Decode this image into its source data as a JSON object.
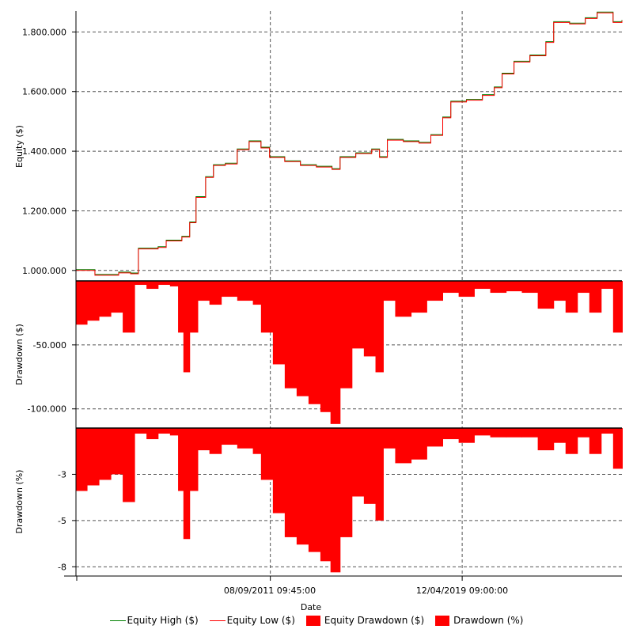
{
  "chart_data": {
    "type": "line",
    "x_range_years": [
      2004.0,
      2025.6
    ],
    "xlabel": "Date",
    "x_tick_labels": [
      "08/09/2011 09:45:00",
      "12/04/2019 09:00:00"
    ],
    "x_tick_years": [
      2011.69,
      2019.28
    ],
    "panels": [
      {
        "ylabel": "Equity ($)",
        "ylim": [
          965000,
          1870000
        ],
        "y_ticks": [
          1000000,
          1200000,
          1400000,
          1600000,
          1800000
        ],
        "y_tick_labels": [
          "1.000.000",
          "1.200.000",
          "1.400.000",
          "1.600.000",
          "1.800.000"
        ]
      },
      {
        "ylabel": "Drawdown ($)",
        "ylim": [
          -115000,
          0
        ],
        "y_ticks": [
          -50000,
          -100000
        ],
        "y_tick_labels": [
          "-50.000",
          "-100.000"
        ]
      },
      {
        "ylabel": "Drawdown (%)",
        "ylim": [
          -8.0,
          0
        ],
        "y_ticks": [
          -2.5,
          -5,
          -7.5
        ],
        "y_tick_labels": [
          "-3",
          "-5",
          "-8"
        ]
      }
    ],
    "equity": {
      "x": [
        2004.0,
        2004.75,
        2005.69,
        2006.16,
        2006.47,
        2007.25,
        2007.57,
        2008.19,
        2008.5,
        2008.75,
        2009.13,
        2009.44,
        2009.91,
        2010.38,
        2010.85,
        2011.32,
        2011.66,
        2012.26,
        2012.88,
        2013.51,
        2014.13,
        2014.45,
        2015.07,
        2015.7,
        2016.01,
        2016.32,
        2016.95,
        2017.57,
        2018.04,
        2018.51,
        2018.83,
        2019.45,
        2020.08,
        2020.55,
        2020.86,
        2021.33,
        2021.96,
        2022.59,
        2022.9,
        2023.53,
        2024.15,
        2024.62,
        2025.25,
        2025.6
      ],
      "values": [
        1000000,
        984000,
        992000,
        989000,
        1072000,
        1077000,
        1099000,
        1112000,
        1160000,
        1245000,
        1312000,
        1352000,
        1357000,
        1405000,
        1432000,
        1411000,
        1379000,
        1365000,
        1352000,
        1347000,
        1339000,
        1379000,
        1392000,
        1405000,
        1379000,
        1437000,
        1432000,
        1427000,
        1453000,
        1512000,
        1565000,
        1571000,
        1587000,
        1613000,
        1659000,
        1699000,
        1720000,
        1765000,
        1832000,
        1827000,
        1845000,
        1864000,
        1832000,
        1837000
      ]
    },
    "drawdown": {
      "x": [
        2004.0,
        2004.44,
        2004.91,
        2005.38,
        2005.85,
        2006.32,
        2006.79,
        2007.25,
        2007.72,
        2008.04,
        2008.25,
        2008.5,
        2008.82,
        2009.28,
        2009.75,
        2010.38,
        2011.0,
        2011.32,
        2011.79,
        2012.26,
        2012.73,
        2013.2,
        2013.67,
        2014.07,
        2014.45,
        2014.92,
        2015.39,
        2015.85,
        2016.16,
        2016.63,
        2017.26,
        2017.88,
        2018.51,
        2019.14,
        2019.76,
        2020.39,
        2021.02,
        2021.64,
        2022.27,
        2022.9,
        2023.37,
        2023.84,
        2024.31,
        2024.78,
        2025.25,
        2025.6
      ],
      "dollars": [
        -34200,
        -31100,
        -28000,
        -24800,
        -40400,
        -3100,
        -6200,
        -3100,
        -4300,
        -40400,
        -71400,
        -40400,
        -15500,
        -18600,
        -12400,
        -15500,
        -18600,
        -40400,
        -65200,
        -83900,
        -90100,
        -96300,
        -102500,
        -111800,
        -83900,
        -52800,
        -59000,
        -71400,
        -15500,
        -28000,
        -24800,
        -15500,
        -9300,
        -12400,
        -6200,
        -9300,
        -8100,
        -9300,
        -21700,
        -15500,
        -24800,
        -9300,
        -24800,
        -6200,
        -40400,
        -40400
      ],
      "percent": [
        -3.4,
        -3.1,
        -2.8,
        -2.5,
        -4.0,
        -0.3,
        -0.6,
        -0.3,
        -0.4,
        -3.4,
        -6.0,
        -3.4,
        -1.2,
        -1.4,
        -0.9,
        -1.1,
        -1.4,
        -2.8,
        -4.6,
        -5.9,
        -6.3,
        -6.7,
        -7.2,
        -7.8,
        -5.9,
        -3.7,
        -4.1,
        -5.0,
        -1.1,
        -1.9,
        -1.7,
        -1.0,
        -0.6,
        -0.8,
        -0.4,
        -0.5,
        -0.5,
        -0.5,
        -1.2,
        -0.8,
        -1.4,
        -0.5,
        -1.4,
        -0.3,
        -2.2,
        -2.2
      ]
    },
    "legend": [
      {
        "label": "Equity High ($)",
        "color": "#008000",
        "kind": "line"
      },
      {
        "label": "Equity Low ($)",
        "color": "#ff0000",
        "kind": "line"
      },
      {
        "label": "Equity Drawdown ($)",
        "color": "#ff0000",
        "kind": "area"
      },
      {
        "label": "Drawdown (%)",
        "color": "#ff0000",
        "kind": "area"
      }
    ],
    "legend_position": "bottom",
    "grid": true
  }
}
